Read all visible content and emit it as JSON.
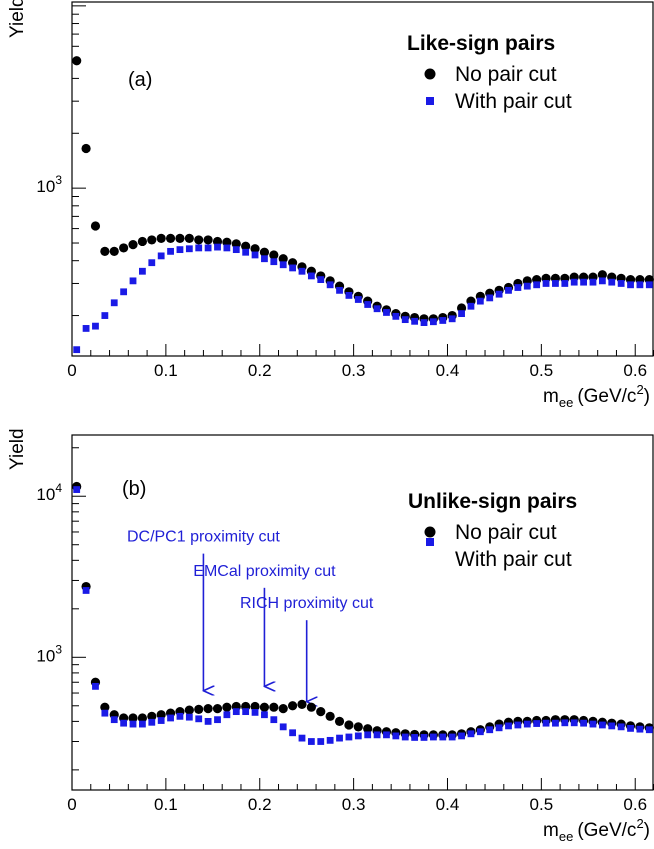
{
  "colors": {
    "no_cut": "#000000",
    "with_cut": "#1a1ae6",
    "annotation": "#1f1fd6"
  },
  "chart_data": [
    {
      "type": "scatter",
      "panel_label": "(a)",
      "xlabel_base": "m",
      "xlabel_sub": "ee",
      "xlabel_unit": "(GeV/c",
      "xlabel_sup": "2",
      "xlabel_close": ")",
      "ylabel": "Yield",
      "xlim": [
        0,
        0.62
      ],
      "ylim": [
        120,
        10500
      ],
      "yscale": "log",
      "x_ticks": [
        {
          "value": 0,
          "label": "0"
        },
        {
          "value": 0.1,
          "label": "0.1"
        },
        {
          "value": 0.2,
          "label": "0.2"
        },
        {
          "value": 0.3,
          "label": "0.3"
        },
        {
          "value": 0.4,
          "label": "0.4"
        },
        {
          "value": 0.5,
          "label": "0.5"
        },
        {
          "value": 0.6,
          "label": "0.6"
        }
      ],
      "y_ticks": [
        {
          "value": 1000,
          "base": "10",
          "exp": "3"
        }
      ],
      "legend": {
        "title": "Like-sign pairs",
        "position": "top-right"
      },
      "series": [
        {
          "name": "No pair cut",
          "marker": "circle",
          "x": [
            0.005,
            0.015,
            0.025,
            0.035,
            0.045,
            0.055,
            0.065,
            0.075,
            0.085,
            0.095,
            0.105,
            0.115,
            0.125,
            0.135,
            0.145,
            0.155,
            0.165,
            0.175,
            0.185,
            0.195,
            0.205,
            0.215,
            0.225,
            0.235,
            0.245,
            0.255,
            0.265,
            0.275,
            0.285,
            0.295,
            0.305,
            0.315,
            0.325,
            0.335,
            0.345,
            0.355,
            0.365,
            0.375,
            0.385,
            0.395,
            0.405,
            0.415,
            0.425,
            0.435,
            0.445,
            0.455,
            0.465,
            0.475,
            0.485,
            0.495,
            0.505,
            0.515,
            0.525,
            0.535,
            0.545,
            0.555,
            0.565,
            0.575,
            0.585,
            0.595,
            0.605,
            0.615
          ],
          "y": [
            5000,
            1650,
            620,
            450,
            450,
            470,
            490,
            510,
            520,
            530,
            530,
            530,
            530,
            520,
            520,
            510,
            505,
            495,
            480,
            465,
            445,
            430,
            410,
            390,
            370,
            350,
            330,
            310,
            290,
            270,
            255,
            240,
            225,
            215,
            205,
            198,
            195,
            192,
            192,
            195,
            200,
            220,
            240,
            255,
            265,
            275,
            285,
            300,
            310,
            315,
            320,
            320,
            320,
            325,
            325,
            325,
            335,
            325,
            320,
            315,
            315,
            315
          ]
        },
        {
          "name": "With pair cut",
          "marker": "square",
          "x": [
            0.005,
            0.015,
            0.025,
            0.035,
            0.045,
            0.055,
            0.065,
            0.075,
            0.085,
            0.095,
            0.105,
            0.115,
            0.125,
            0.135,
            0.145,
            0.155,
            0.165,
            0.175,
            0.185,
            0.195,
            0.205,
            0.215,
            0.225,
            0.235,
            0.245,
            0.255,
            0.265,
            0.275,
            0.285,
            0.295,
            0.305,
            0.315,
            0.325,
            0.335,
            0.345,
            0.355,
            0.365,
            0.375,
            0.385,
            0.395,
            0.405,
            0.415,
            0.425,
            0.435,
            0.445,
            0.455,
            0.465,
            0.475,
            0.485,
            0.495,
            0.505,
            0.515,
            0.525,
            0.535,
            0.545,
            0.555,
            0.565,
            0.575,
            0.585,
            0.595,
            0.605,
            0.615
          ],
          "y": [
            130,
            170,
            175,
            200,
            235,
            270,
            310,
            350,
            390,
            425,
            450,
            460,
            465,
            470,
            470,
            475,
            470,
            460,
            445,
            430,
            410,
            395,
            380,
            365,
            350,
            330,
            315,
            295,
            275,
            258,
            245,
            230,
            218,
            208,
            198,
            190,
            186,
            183,
            185,
            188,
            192,
            205,
            225,
            240,
            250,
            262,
            275,
            285,
            290,
            295,
            300,
            300,
            300,
            305,
            305,
            305,
            310,
            305,
            300,
            295,
            295,
            295
          ]
        }
      ]
    },
    {
      "type": "scatter",
      "panel_label": "(b)",
      "xlabel_base": "m",
      "xlabel_sub": "ee",
      "xlabel_unit": "(GeV/c",
      "xlabel_sup": "2",
      "xlabel_close": ")",
      "ylabel": "Yield",
      "xlim": [
        0,
        0.62
      ],
      "ylim": [
        150,
        24000
      ],
      "yscale": "log",
      "x_ticks": [
        {
          "value": 0,
          "label": "0"
        },
        {
          "value": 0.1,
          "label": "0.1"
        },
        {
          "value": 0.2,
          "label": "0.2"
        },
        {
          "value": 0.3,
          "label": "0.3"
        },
        {
          "value": 0.4,
          "label": "0.4"
        },
        {
          "value": 0.5,
          "label": "0.5"
        },
        {
          "value": 0.6,
          "label": "0.6"
        }
      ],
      "y_ticks": [
        {
          "value": 1000,
          "base": "10",
          "exp": "3"
        },
        {
          "value": 10000,
          "base": "10",
          "exp": "4"
        }
      ],
      "legend": {
        "title": "Unlike-sign pairs",
        "position": "top-right"
      },
      "annotations": [
        {
          "text": "DC/PC1 proximity cut",
          "x": 0.14,
          "y_top": 4400,
          "y_tip": 620
        },
        {
          "text": "EMCal proximity cut",
          "x": 0.205,
          "y_top": 2700,
          "y_tip": 660
        },
        {
          "text": "RICH proximity cut",
          "x": 0.25,
          "y_top": 1700,
          "y_tip": 530
        }
      ],
      "series": [
        {
          "name": "No pair cut",
          "marker": "circle",
          "x": [
            0.005,
            0.015,
            0.025,
            0.035,
            0.045,
            0.055,
            0.065,
            0.075,
            0.085,
            0.095,
            0.105,
            0.115,
            0.125,
            0.135,
            0.145,
            0.155,
            0.165,
            0.175,
            0.185,
            0.195,
            0.205,
            0.215,
            0.225,
            0.235,
            0.245,
            0.255,
            0.265,
            0.275,
            0.285,
            0.295,
            0.305,
            0.315,
            0.325,
            0.335,
            0.345,
            0.355,
            0.365,
            0.375,
            0.385,
            0.395,
            0.405,
            0.415,
            0.425,
            0.435,
            0.445,
            0.455,
            0.465,
            0.475,
            0.485,
            0.495,
            0.505,
            0.515,
            0.525,
            0.535,
            0.545,
            0.555,
            0.565,
            0.575,
            0.585,
            0.595,
            0.605,
            0.615
          ],
          "y": [
            11500,
            2750,
            700,
            490,
            440,
            420,
            420,
            420,
            430,
            440,
            450,
            460,
            470,
            475,
            480,
            480,
            490,
            495,
            495,
            495,
            490,
            490,
            480,
            500,
            510,
            490,
            460,
            430,
            400,
            380,
            370,
            360,
            350,
            345,
            340,
            335,
            332,
            330,
            330,
            330,
            330,
            335,
            345,
            355,
            370,
            385,
            395,
            400,
            400,
            405,
            405,
            410,
            410,
            410,
            405,
            400,
            395,
            390,
            385,
            375,
            370,
            365
          ]
        },
        {
          "name": "With pair cut",
          "marker": "square",
          "x": [
            0.005,
            0.015,
            0.025,
            0.035,
            0.045,
            0.055,
            0.065,
            0.075,
            0.085,
            0.095,
            0.105,
            0.115,
            0.125,
            0.135,
            0.145,
            0.155,
            0.165,
            0.175,
            0.185,
            0.195,
            0.205,
            0.215,
            0.225,
            0.235,
            0.245,
            0.255,
            0.265,
            0.275,
            0.285,
            0.295,
            0.305,
            0.315,
            0.325,
            0.335,
            0.345,
            0.355,
            0.365,
            0.375,
            0.385,
            0.395,
            0.405,
            0.415,
            0.425,
            0.435,
            0.445,
            0.455,
            0.465,
            0.475,
            0.485,
            0.495,
            0.505,
            0.515,
            0.525,
            0.535,
            0.545,
            0.555,
            0.565,
            0.575,
            0.585,
            0.595,
            0.605,
            0.615
          ],
          "y": [
            11000,
            2600,
            660,
            450,
            410,
            390,
            385,
            385,
            395,
            405,
            420,
            430,
            425,
            415,
            400,
            410,
            440,
            460,
            460,
            455,
            440,
            410,
            370,
            340,
            315,
            300,
            300,
            305,
            315,
            320,
            325,
            330,
            330,
            330,
            325,
            320,
            318,
            318,
            320,
            320,
            320,
            325,
            335,
            345,
            355,
            365,
            375,
            380,
            385,
            388,
            390,
            390,
            392,
            392,
            390,
            385,
            380,
            375,
            370,
            362,
            358,
            355
          ]
        }
      ]
    }
  ]
}
